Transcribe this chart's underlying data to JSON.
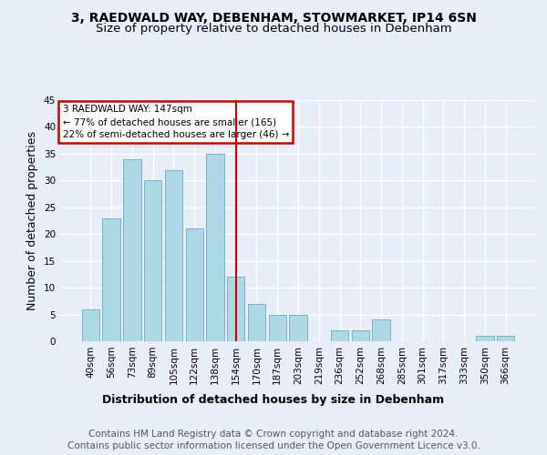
{
  "title1": "3, RAEDWALD WAY, DEBENHAM, STOWMARKET, IP14 6SN",
  "title2": "Size of property relative to detached houses in Debenham",
  "xlabel": "Distribution of detached houses by size in Debenham",
  "ylabel": "Number of detached properties",
  "footer1": "Contains HM Land Registry data © Crown copyright and database right 2024.",
  "footer2": "Contains public sector information licensed under the Open Government Licence v3.0.",
  "annotation_line1": "3 RAEDWALD WAY: 147sqm",
  "annotation_line2": "← 77% of detached houses are smaller (165)",
  "annotation_line3": "22% of semi-detached houses are larger (46) →",
  "bar_labels": [
    "40sqm",
    "56sqm",
    "73sqm",
    "89sqm",
    "105sqm",
    "122sqm",
    "138sqm",
    "154sqm",
    "170sqm",
    "187sqm",
    "203sqm",
    "219sqm",
    "236sqm",
    "252sqm",
    "268sqm",
    "285sqm",
    "301sqm",
    "317sqm",
    "333sqm",
    "350sqm",
    "366sqm"
  ],
  "bar_values": [
    6,
    23,
    34,
    30,
    32,
    21,
    35,
    12,
    7,
    5,
    5,
    0,
    2,
    2,
    4,
    0,
    0,
    0,
    0,
    1,
    1
  ],
  "bar_color": "#add8e6",
  "bar_edge_color": "#7ab0cc",
  "marker_value_index": 7,
  "marker_color": "#cc0000",
  "ylim": [
    0,
    45
  ],
  "yticks": [
    0,
    5,
    10,
    15,
    20,
    25,
    30,
    35,
    40,
    45
  ],
  "bg_color": "#e8eef8",
  "plot_bg_color": "#e8eef8",
  "grid_color": "#ffffff",
  "annotation_box_color": "#cc0000",
  "title1_fontsize": 10,
  "title2_fontsize": 9.5,
  "axis_label_fontsize": 9,
  "tick_fontsize": 7.5,
  "footer_fontsize": 7.5
}
